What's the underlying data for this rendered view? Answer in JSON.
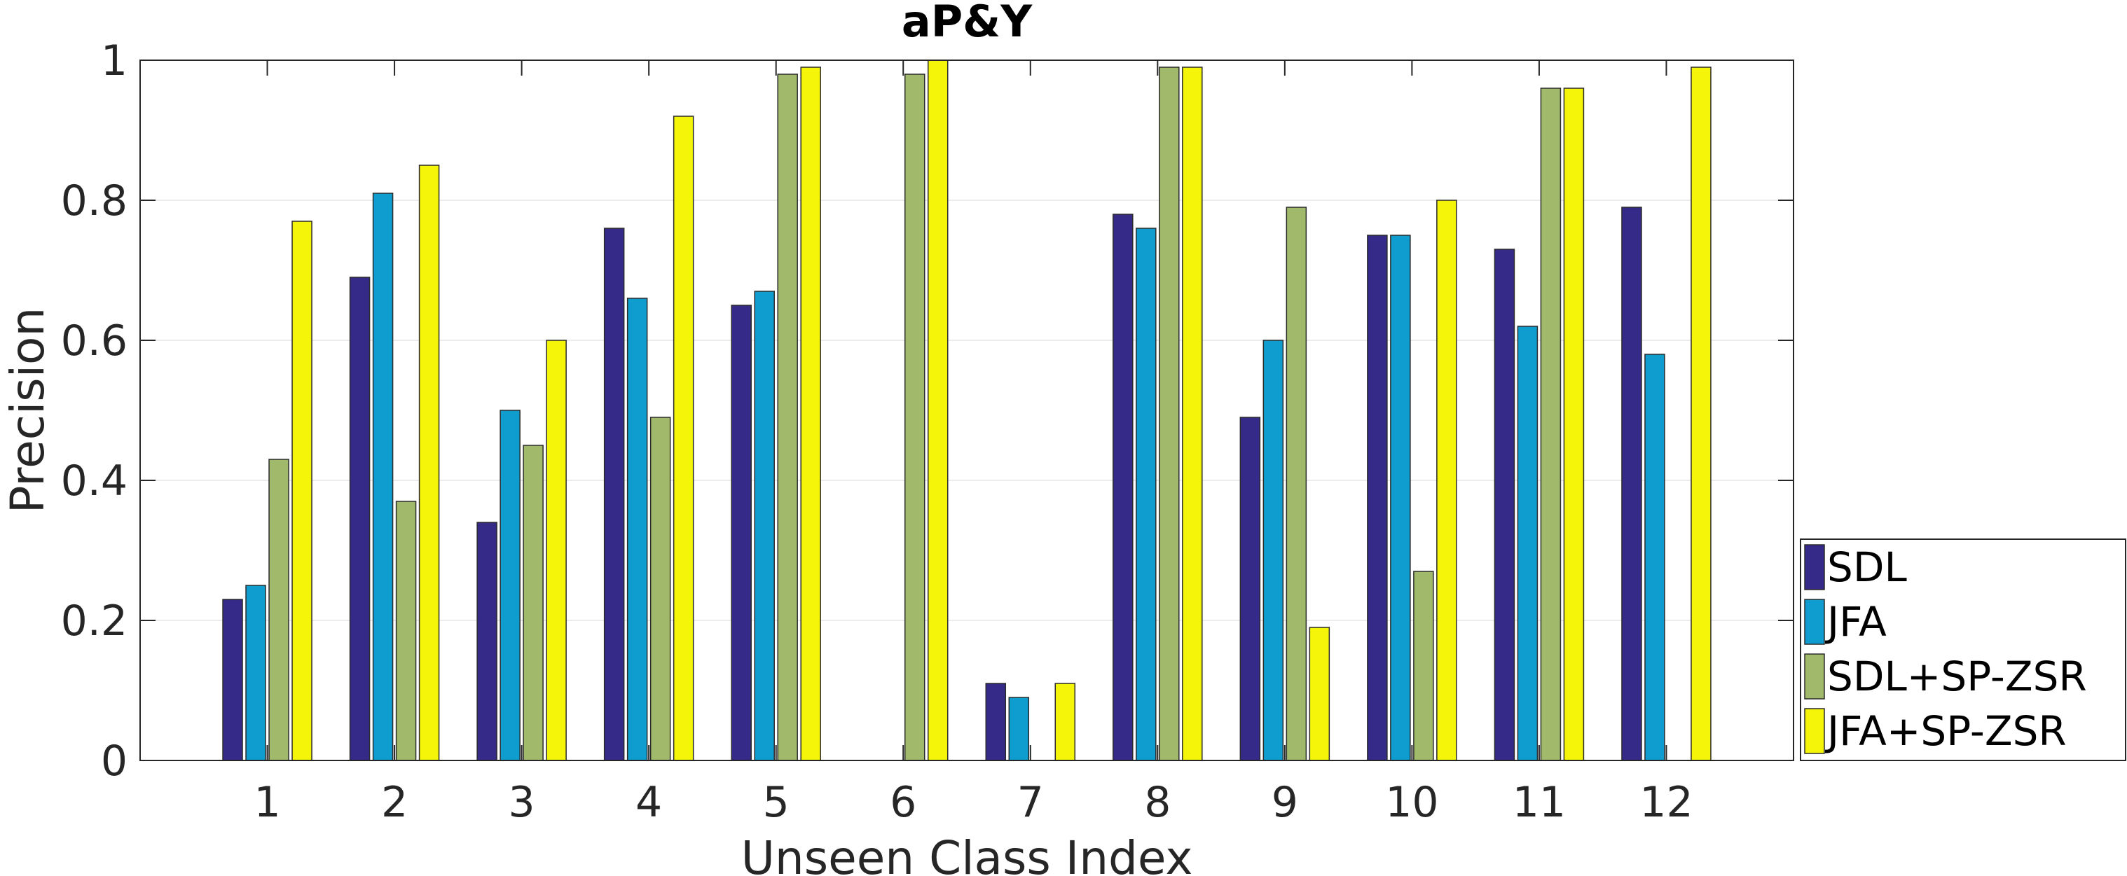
{
  "chart_data": {
    "type": "bar",
    "title": "aP&Y",
    "xlabel": "Unseen Class Index",
    "ylabel": "Precision",
    "categories": [
      "1",
      "2",
      "3",
      "4",
      "5",
      "6",
      "7",
      "8",
      "9",
      "10",
      "11",
      "12"
    ],
    "ylim": [
      0,
      1
    ],
    "yticks": [
      "0",
      "0.2",
      "0.4",
      "0.6",
      "0.8",
      "1"
    ],
    "grid": true,
    "legend_position": "right",
    "series": [
      {
        "name": "SDL",
        "color": "#352a87",
        "values": [
          0.23,
          0.69,
          0.34,
          0.76,
          0.65,
          0.0,
          0.11,
          0.78,
          0.49,
          0.75,
          0.73,
          0.79
        ]
      },
      {
        "name": "JFA",
        "color": "#0f9dcf",
        "values": [
          0.25,
          0.81,
          0.5,
          0.66,
          0.67,
          0.0,
          0.09,
          0.76,
          0.6,
          0.75,
          0.62,
          0.58
        ]
      },
      {
        "name": "SDL+SP-ZSR",
        "color": "#a0b96b",
        "values": [
          0.43,
          0.37,
          0.45,
          0.49,
          0.98,
          0.98,
          0.0,
          0.99,
          0.79,
          0.27,
          0.96,
          0.0
        ]
      },
      {
        "name": "JFA+SP-ZSR",
        "color": "#f5f50a",
        "values": [
          0.77,
          0.85,
          0.6,
          0.92,
          0.99,
          1.0,
          0.11,
          0.99,
          0.19,
          0.8,
          0.96,
          0.99
        ]
      }
    ]
  }
}
